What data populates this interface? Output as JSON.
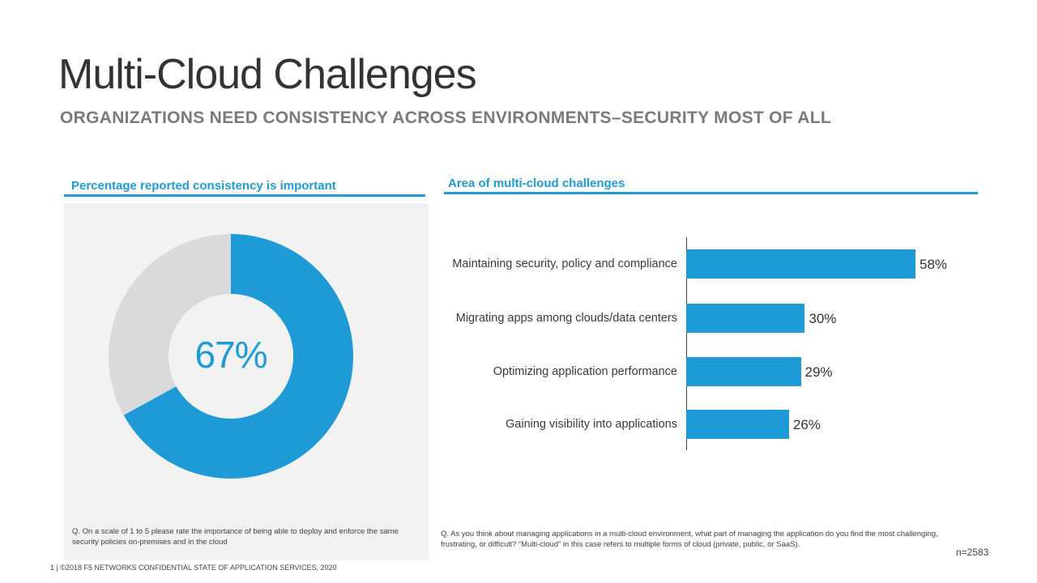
{
  "slide": {
    "title": "Multi-Cloud Challenges",
    "subtitle": "ORGANIZATIONS NEED CONSISTENCY ACROSS ENVIRONMENTS–SECURITY MOST OF ALL",
    "left_heading": "Percentage reported consistency is important",
    "right_heading": "Area of multi-cloud challenges",
    "left_note": "Q. On a scale of 1 to 5 please rate the importance of being able to deploy and enforce the same security policies on-premises and in the cloud",
    "right_note": "Q. As you think about managing applications in a multi-cloud environment, what part of managing the application do you find the most challenging, frustrating, or difficult? “Multi-cloud” in this case refers to multiple forms of cloud (private, public, or SaaS).",
    "sample_size": "n=2583",
    "footer": "1  |  ©2018 F5 NETWORKS CONFIDENTIAL STATE OF APPLICATION SERVICES, 2020"
  },
  "colors": {
    "accent": "#1e9bd7",
    "donut_remainder": "#d9dadb",
    "panel": "#f2f2f2"
  },
  "chart_data": [
    {
      "type": "pie",
      "variant": "donut",
      "title": "Percentage reported consistency is important",
      "center_label": "67%",
      "slices": [
        {
          "name": "",
          "value": 67,
          "color": "#1e9bd7"
        },
        {
          "name": "",
          "value": 33,
          "color": "#d9dadb"
        }
      ]
    },
    {
      "type": "bar",
      "orientation": "horizontal",
      "title": "Area of multi-cloud challenges",
      "categories": [
        "Maintaining security, policy and compliance",
        "Migrating apps among clouds/data centers",
        "Optimizing application performance",
        "Gaining visibility into applications"
      ],
      "values": [
        58,
        30,
        29,
        26
      ],
      "value_labels": [
        "58%",
        "30%",
        "29%",
        "26%"
      ],
      "color": "#1e9bd7",
      "grid": false,
      "xlim": [
        0,
        60
      ]
    }
  ]
}
